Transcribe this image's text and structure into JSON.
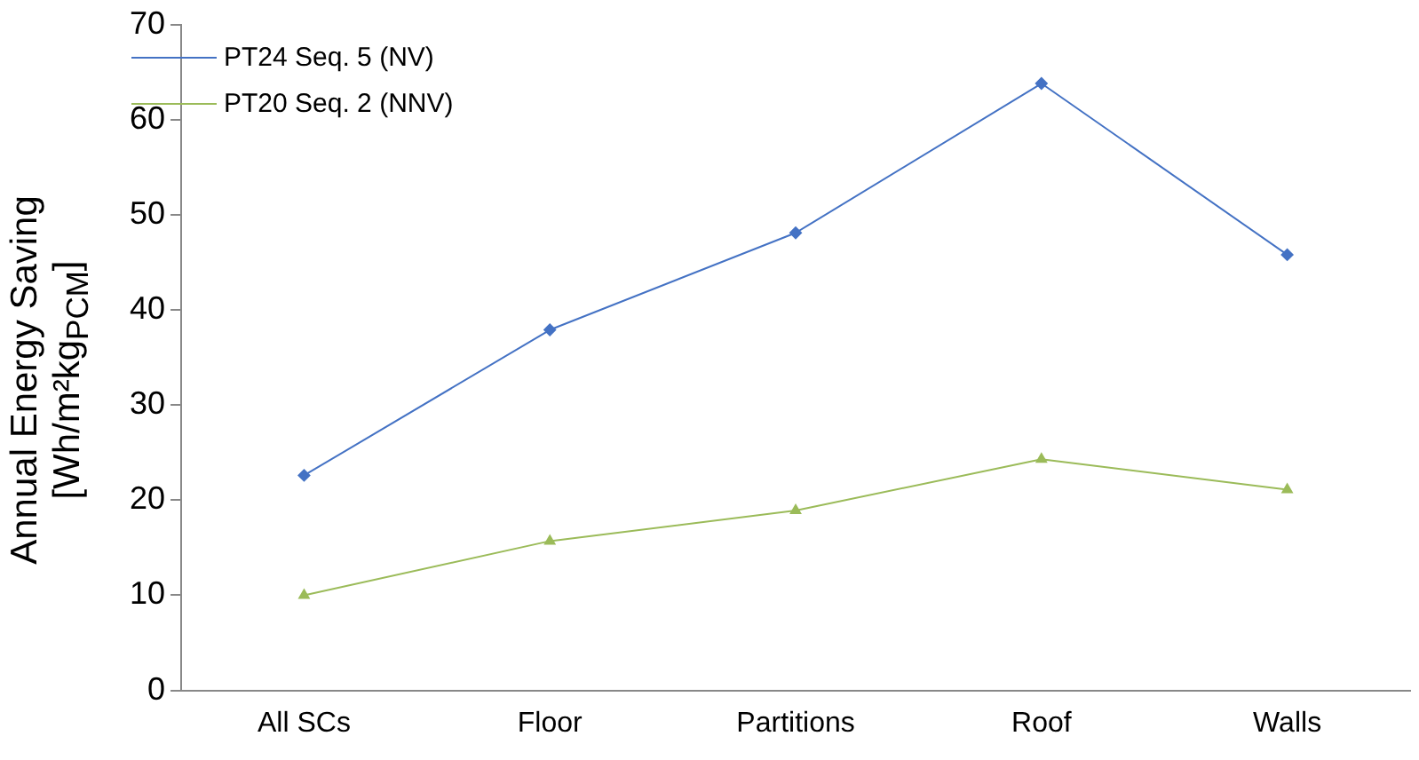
{
  "chart_data": {
    "type": "line",
    "ylabel": "Annual Energy Saving\n[Wh/m²kg$_{PCM}$]",
    "categories": [
      "All SCs",
      "Floor",
      "Partitions",
      "Roof",
      "Walls"
    ],
    "series": [
      {
        "name": "PT24 Seq. 5 (NV)",
        "color": "#4472c4",
        "marker": "diamond",
        "values": [
          22.6,
          37.9,
          48.1,
          63.8,
          45.8
        ]
      },
      {
        "name": "PT20 Seq. 2 (NNV)",
        "color": "#9bbb59",
        "marker": "triangle",
        "values": [
          10.0,
          15.7,
          18.9,
          24.3,
          21.1
        ]
      }
    ],
    "ylim": [
      0,
      70
    ],
    "yticks": [
      0,
      10,
      20,
      30,
      40,
      50,
      60,
      70
    ],
    "grid": false,
    "legend": "top left",
    "line_style": "solid"
  }
}
